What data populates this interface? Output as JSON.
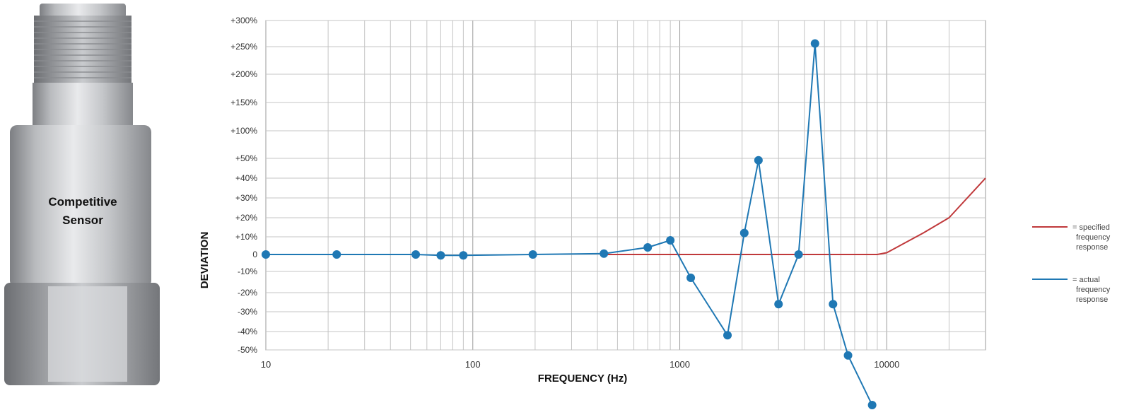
{
  "sensor": {
    "label_line1": "Competitive",
    "label_line2": "Sensor"
  },
  "legend": {
    "items": [
      {
        "name": "= specified frequency response",
        "lines": [
          "= specified",
          "frequency",
          "response"
        ],
        "color": "#c0393b"
      },
      {
        "name": "= actual frequency response",
        "lines": [
          "= actual",
          "frequency",
          "response"
        ],
        "color": "#1f78b4"
      }
    ]
  },
  "chart_data": {
    "type": "line",
    "xlabel": "FREQUENCY (Hz)",
    "ylabel": "DEVIATION",
    "x_scale": "log",
    "xlim": [
      10,
      30000
    ],
    "x_tick_labels": [
      "10",
      "100",
      "1000",
      "10000"
    ],
    "y_tick_labels": [
      "+300%",
      "+250%",
      "+200%",
      "+150%",
      "+100%",
      "+50%",
      "+40%",
      "+30%",
      "+20%",
      "+10%",
      "0",
      "-10%",
      "-20%",
      "-30%",
      "-40%",
      "-50%"
    ],
    "y_tick_values": [
      300,
      250,
      200,
      150,
      100,
      50,
      40,
      30,
      20,
      10,
      0,
      -10,
      -20,
      -30,
      -40,
      -50
    ],
    "grid": true,
    "legend_position": "right",
    "series": [
      {
        "name": "= specified frequency response",
        "color": "#c0393b",
        "marker": "none",
        "x": [
          430,
          9000,
          10000,
          15000,
          20000,
          30000
        ],
        "y": [
          0,
          0,
          1,
          12,
          20,
          40
        ]
      },
      {
        "name": "= actual frequency response",
        "color": "#1f78b4",
        "marker": "circle",
        "x": [
          10,
          22,
          53,
          70,
          90,
          195,
          430,
          700,
          900,
          1130,
          1700,
          2050,
          2400,
          3000,
          3750,
          4500,
          5500,
          6500,
          8500
        ],
        "y": [
          0,
          0,
          0,
          -0.5,
          -0.5,
          0,
          0.5,
          4,
          8,
          -13,
          -42,
          12,
          49,
          -26,
          0,
          256,
          -26,
          -53,
          -80
        ]
      }
    ]
  }
}
